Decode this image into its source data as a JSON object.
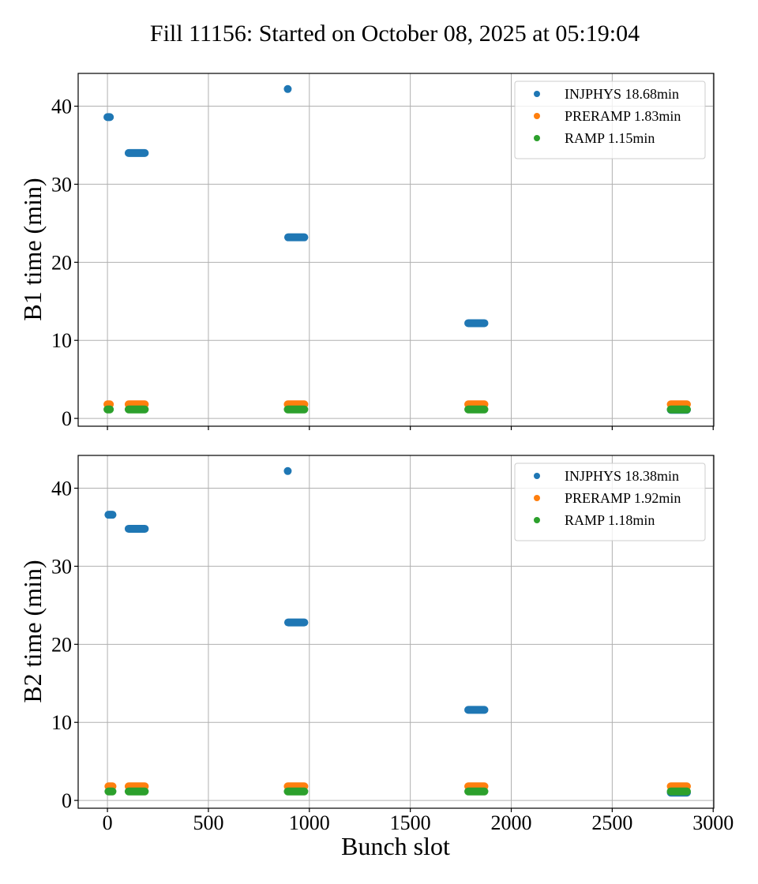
{
  "chart_data": {
    "type": "scatter",
    "title": "Fill 11156: Started on October 08, 2025 at 05:19:04",
    "xlabel": "Bunch slot",
    "xlim": [
      -145,
      3003
    ],
    "xticks": [
      0,
      500,
      1000,
      1500,
      2000,
      2500,
      3000
    ],
    "grid": true,
    "colors": {
      "INJPHYS": "#1f77b4",
      "PRERAMP": "#ff7f0e",
      "RAMP": "#2ca02c"
    },
    "panels": [
      {
        "ylabel": "B1 time (min)",
        "ylim": [
          -1.0,
          44.2
        ],
        "yticks": [
          0,
          10,
          20,
          30,
          40
        ],
        "legend_position": "top-right",
        "series": [
          {
            "name": "INJPHYS",
            "legend": "INJPHYS 18.68min",
            "points": [
              {
                "x_from": 0,
                "x_to": 12,
                "y": 38.6
              },
              {
                "x_from": 105,
                "x_to": 185,
                "y": 34.0
              },
              {
                "x_from": 893,
                "x_to": 893,
                "y": 42.2
              },
              {
                "x_from": 895,
                "x_to": 975,
                "y": 23.2
              },
              {
                "x_from": 1787,
                "x_to": 1867,
                "y": 12.2
              },
              {
                "x_from": 2790,
                "x_to": 2870,
                "y": 1.1
              }
            ]
          },
          {
            "name": "PRERAMP",
            "legend": "PRERAMP 1.83min",
            "points": [
              {
                "x_from": 0,
                "x_to": 12,
                "y": 1.8
              },
              {
                "x_from": 105,
                "x_to": 185,
                "y": 1.8
              },
              {
                "x_from": 893,
                "x_to": 975,
                "y": 1.8
              },
              {
                "x_from": 1787,
                "x_to": 1867,
                "y": 1.8
              },
              {
                "x_from": 2790,
                "x_to": 2870,
                "y": 1.8
              }
            ]
          },
          {
            "name": "RAMP",
            "legend": "RAMP 1.15min",
            "points": [
              {
                "x_from": 0,
                "x_to": 12,
                "y": 1.15
              },
              {
                "x_from": 105,
                "x_to": 185,
                "y": 1.15
              },
              {
                "x_from": 893,
                "x_to": 975,
                "y": 1.15
              },
              {
                "x_from": 1787,
                "x_to": 1867,
                "y": 1.15
              },
              {
                "x_from": 2790,
                "x_to": 2870,
                "y": 1.15
              }
            ]
          }
        ]
      },
      {
        "ylabel": "B2 time (min)",
        "ylim": [
          -1.0,
          44.2
        ],
        "yticks": [
          0,
          10,
          20,
          30,
          40
        ],
        "legend_position": "top-right",
        "series": [
          {
            "name": "INJPHYS",
            "legend": "INJPHYS 18.38min",
            "points": [
              {
                "x_from": 5,
                "x_to": 25,
                "y": 36.6
              },
              {
                "x_from": 105,
                "x_to": 185,
                "y": 34.8
              },
              {
                "x_from": 893,
                "x_to": 893,
                "y": 42.2
              },
              {
                "x_from": 895,
                "x_to": 975,
                "y": 22.8
              },
              {
                "x_from": 1787,
                "x_to": 1867,
                "y": 11.6
              },
              {
                "x_from": 2790,
                "x_to": 2870,
                "y": 1.0
              }
            ]
          },
          {
            "name": "PRERAMP",
            "legend": "PRERAMP 1.92min",
            "points": [
              {
                "x_from": 5,
                "x_to": 25,
                "y": 1.8
              },
              {
                "x_from": 105,
                "x_to": 185,
                "y": 1.8
              },
              {
                "x_from": 893,
                "x_to": 975,
                "y": 1.8
              },
              {
                "x_from": 1787,
                "x_to": 1867,
                "y": 1.8
              },
              {
                "x_from": 2790,
                "x_to": 2870,
                "y": 1.8
              }
            ]
          },
          {
            "name": "RAMP",
            "legend": "RAMP 1.18min",
            "points": [
              {
                "x_from": 5,
                "x_to": 25,
                "y": 1.15
              },
              {
                "x_from": 105,
                "x_to": 185,
                "y": 1.15
              },
              {
                "x_from": 893,
                "x_to": 975,
                "y": 1.15
              },
              {
                "x_from": 1787,
                "x_to": 1867,
                "y": 1.15
              },
              {
                "x_from": 2790,
                "x_to": 2870,
                "y": 1.15
              }
            ]
          }
        ]
      }
    ]
  }
}
